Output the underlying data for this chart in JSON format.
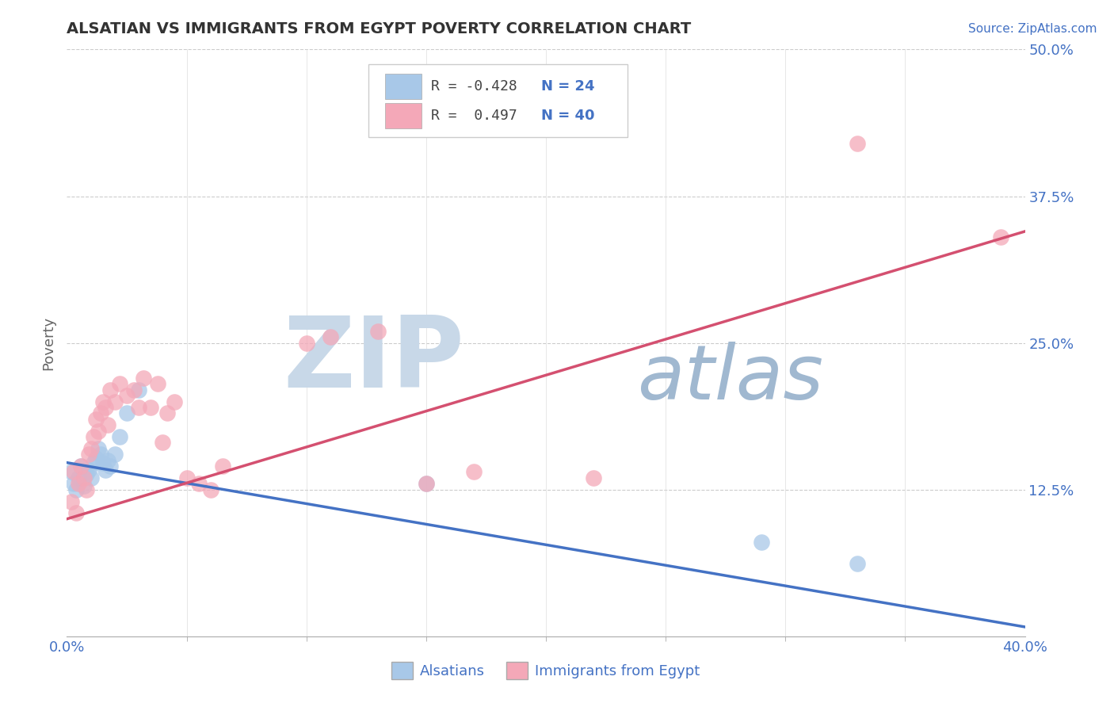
{
  "title": "ALSATIAN VS IMMIGRANTS FROM EGYPT POVERTY CORRELATION CHART",
  "source": "Source: ZipAtlas.com",
  "xlabel_label": "Alsatians",
  "xlabel_label2": "Immigrants from Egypt",
  "ylabel": "Poverty",
  "xlim": [
    0.0,
    0.4
  ],
  "ylim": [
    0.0,
    0.5
  ],
  "xtick_positions": [
    0.0,
    0.4
  ],
  "xtick_labels": [
    "0.0%",
    "40.0%"
  ],
  "xtick_minor": [
    0.05,
    0.1,
    0.15,
    0.2,
    0.25,
    0.3,
    0.35
  ],
  "ytick_labels": [
    "12.5%",
    "25.0%",
    "37.5%",
    "50.0%"
  ],
  "ytick_vals": [
    0.125,
    0.25,
    0.375,
    0.5
  ],
  "blue_R": -0.428,
  "blue_N": 24,
  "pink_R": 0.497,
  "pink_N": 40,
  "blue_color": "#a8c8e8",
  "pink_color": "#f4a8b8",
  "blue_line_color": "#4472c4",
  "pink_line_color": "#d45070",
  "watermark_zip": "ZIP",
  "watermark_atlas": "atlas",
  "watermark_color_zip": "#c8d8e8",
  "watermark_color_atlas": "#a0b8d0",
  "blue_scatter_x": [
    0.002,
    0.003,
    0.004,
    0.005,
    0.006,
    0.007,
    0.008,
    0.009,
    0.01,
    0.011,
    0.012,
    0.013,
    0.014,
    0.015,
    0.016,
    0.017,
    0.018,
    0.02,
    0.022,
    0.025,
    0.03,
    0.15,
    0.29,
    0.33
  ],
  "blue_scatter_y": [
    0.14,
    0.13,
    0.125,
    0.135,
    0.145,
    0.128,
    0.138,
    0.142,
    0.135,
    0.148,
    0.152,
    0.16,
    0.155,
    0.148,
    0.142,
    0.15,
    0.145,
    0.155,
    0.17,
    0.19,
    0.21,
    0.13,
    0.08,
    0.062
  ],
  "pink_scatter_x": [
    0.002,
    0.003,
    0.004,
    0.005,
    0.006,
    0.007,
    0.008,
    0.009,
    0.01,
    0.011,
    0.012,
    0.013,
    0.014,
    0.015,
    0.016,
    0.017,
    0.018,
    0.02,
    0.022,
    0.025,
    0.028,
    0.03,
    0.032,
    0.035,
    0.038,
    0.04,
    0.042,
    0.045,
    0.05,
    0.055,
    0.06,
    0.065,
    0.1,
    0.11,
    0.13,
    0.15,
    0.17,
    0.22,
    0.33,
    0.39
  ],
  "pink_scatter_y": [
    0.115,
    0.14,
    0.105,
    0.13,
    0.145,
    0.135,
    0.125,
    0.155,
    0.16,
    0.17,
    0.185,
    0.175,
    0.19,
    0.2,
    0.195,
    0.18,
    0.21,
    0.2,
    0.215,
    0.205,
    0.21,
    0.195,
    0.22,
    0.195,
    0.215,
    0.165,
    0.19,
    0.2,
    0.135,
    0.13,
    0.125,
    0.145,
    0.25,
    0.255,
    0.26,
    0.13,
    0.14,
    0.135,
    0.42,
    0.34
  ],
  "blue_trendline_x": [
    0.0,
    0.4
  ],
  "blue_trendline_y": [
    0.148,
    0.008
  ],
  "pink_trendline_x": [
    0.0,
    0.4
  ],
  "pink_trendline_y": [
    0.1,
    0.345
  ]
}
